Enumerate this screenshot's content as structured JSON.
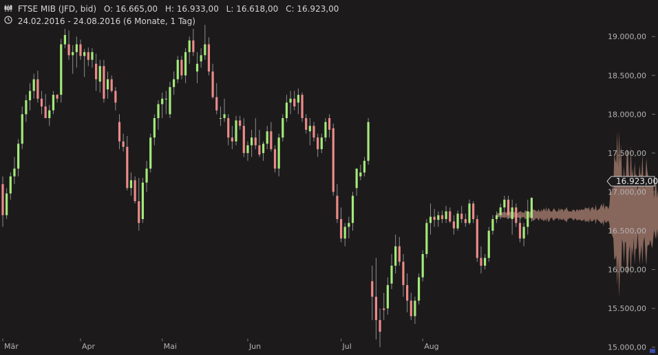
{
  "header": {
    "instrument": "FTSE MIB (JFD, bid)",
    "open": "O: 16.665,00",
    "high": "H: 16.933,00",
    "low": "L: 16.618,00",
    "close": "C: 16.923,00",
    "range": "24.02.2016 - 24.08.2016 (6 Monate, 1 Tag)",
    "chart_icon": "candlestick-icon",
    "clock_icon": "clock-icon"
  },
  "last_price_label": "16.923,00",
  "colors": {
    "background": "#1c1a1a",
    "up": "#a3ea7a",
    "down": "#ec8a8a",
    "wick": "#8e8e8e",
    "overlay": "#9a7468",
    "axis_text": "#b4b4b4"
  },
  "chart_data": {
    "type": "candlestick",
    "title": "FTSE MIB (JFD, bid)",
    "xlabel": "",
    "ylabel": "",
    "x_tick_labels": [
      "Mär",
      "Apr",
      "Mai",
      "Jun",
      "Jul",
      "Aug"
    ],
    "y_ticks": [
      15000,
      15500,
      16000,
      16500,
      17000,
      17500,
      18000,
      18500,
      19000
    ],
    "y_tick_labels": [
      "15.000,00",
      "15.500,00",
      "16.000,00",
      "16.500,00",
      "17.000,00",
      "17.500,00",
      "18.000,00",
      "18.500,00",
      "19.000,00"
    ],
    "ylim": [
      14900,
      19400
    ],
    "last_price": 16923,
    "grid": false,
    "series": [
      {
        "candles": [
          [
            17100,
            17200,
            16550,
            16700
          ],
          [
            16700,
            17050,
            16650,
            16980
          ],
          [
            16980,
            17250,
            16900,
            17200
          ],
          [
            17200,
            17450,
            17100,
            17300
          ],
          [
            17300,
            17680,
            17200,
            17620
          ],
          [
            17620,
            18100,
            17550,
            18000
          ],
          [
            18000,
            18250,
            17900,
            18180
          ],
          [
            18180,
            18400,
            18050,
            18300
          ],
          [
            18300,
            18520,
            18200,
            18450
          ],
          [
            18450,
            18560,
            18150,
            18200
          ],
          [
            18200,
            18300,
            18000,
            18100
          ],
          [
            18100,
            18260,
            17950,
            17950
          ],
          [
            17950,
            18120,
            17850,
            18050
          ],
          [
            18050,
            18300,
            18000,
            18250
          ],
          [
            18250,
            18260,
            18150,
            18200
          ],
          [
            18250,
            18970,
            18150,
            18900
          ],
          [
            18900,
            19100,
            18850,
            19020
          ],
          [
            18900,
            19080,
            18700,
            18760
          ],
          [
            18760,
            18890,
            18520,
            18800
          ],
          [
            18800,
            19000,
            18600,
            18900
          ],
          [
            18900,
            18960,
            18700,
            18750
          ],
          [
            18750,
            18840,
            18480,
            18800
          ],
          [
            18800,
            18860,
            18620,
            18700
          ],
          [
            18700,
            18850,
            18600,
            18800
          ],
          [
            18650,
            18780,
            18300,
            18450
          ],
          [
            18420,
            18700,
            18280,
            18620
          ],
          [
            18620,
            18700,
            18150,
            18200
          ],
          [
            18320,
            18550,
            18200,
            18450
          ],
          [
            18450,
            18500,
            18280,
            18300
          ],
          [
            18300,
            18350,
            18050,
            18150
          ],
          [
            17900,
            18000,
            17550,
            17650
          ],
          [
            17650,
            17750,
            17520,
            17580
          ],
          [
            17580,
            17720,
            17020,
            17050
          ],
          [
            17050,
            17250,
            16950,
            17150
          ],
          [
            17150,
            17200,
            16850,
            16880
          ],
          [
            16880,
            17180,
            16500,
            16600
          ],
          [
            16650,
            17180,
            16600,
            17120
          ],
          [
            17120,
            17400,
            17000,
            17300
          ],
          [
            17300,
            17750,
            17250,
            17700
          ],
          [
            17700,
            18000,
            17600,
            17950
          ],
          [
            17950,
            18180,
            17800,
            18130
          ],
          [
            18130,
            18280,
            17950,
            18200
          ],
          [
            18200,
            18300,
            18000,
            18200
          ],
          [
            18000,
            18420,
            17950,
            18350
          ],
          [
            18350,
            18550,
            18250,
            18450
          ],
          [
            18450,
            18750,
            18400,
            18700
          ],
          [
            18700,
            18750,
            18450,
            18500
          ],
          [
            18500,
            18850,
            18400,
            18800
          ],
          [
            18800,
            19000,
            18650,
            18950
          ],
          [
            18950,
            19100,
            18750,
            18800
          ],
          [
            18550,
            18800,
            18400,
            18650
          ],
          [
            18680,
            18850,
            18600,
            18760
          ],
          [
            18760,
            19150,
            18700,
            18900
          ],
          [
            18900,
            18990,
            18500,
            18550
          ],
          [
            18550,
            18650,
            18200,
            18220
          ],
          [
            18220,
            18400,
            18000,
            18050
          ],
          [
            17950,
            18100,
            17850,
            17950
          ],
          [
            17950,
            18200,
            17900,
            18000
          ],
          [
            17950,
            18000,
            17600,
            17700
          ],
          [
            17700,
            17850,
            17550,
            17650
          ],
          [
            17650,
            17980,
            17600,
            17920
          ],
          [
            17920,
            17980,
            17800,
            17850
          ],
          [
            17850,
            17950,
            17450,
            17500
          ],
          [
            17500,
            17650,
            17400,
            17600
          ],
          [
            17600,
            17800,
            17450,
            17700
          ],
          [
            17700,
            17950,
            17550,
            17600
          ],
          [
            17600,
            17800,
            17450,
            17480
          ],
          [
            17500,
            17650,
            17400,
            17620
          ],
          [
            17620,
            17850,
            17550,
            17780
          ],
          [
            17780,
            17900,
            17520,
            17550
          ],
          [
            17550,
            17600,
            17250,
            17300
          ],
          [
            17300,
            17750,
            17200,
            17700
          ],
          [
            17700,
            18000,
            17650,
            17950
          ],
          [
            17950,
            18250,
            17900,
            18150
          ],
          [
            18150,
            18300,
            18000,
            18200
          ],
          [
            18200,
            18300,
            18050,
            18100
          ],
          [
            18150,
            18330,
            18000,
            18250
          ],
          [
            18250,
            18280,
            17900,
            17950
          ],
          [
            17950,
            18000,
            17750,
            17800
          ],
          [
            17780,
            17950,
            17600,
            17850
          ],
          [
            17850,
            17900,
            17650,
            17700
          ],
          [
            17700,
            17750,
            17450,
            17550
          ],
          [
            17550,
            17750,
            17500,
            17700
          ],
          [
            17700,
            17950,
            17650,
            17900
          ],
          [
            17950,
            18000,
            17700,
            17800
          ],
          [
            17820,
            17880,
            16950,
            17000
          ],
          [
            16950,
            17100,
            16600,
            16650
          ],
          [
            16650,
            16800,
            16350,
            16400
          ],
          [
            16400,
            16600,
            16300,
            16550
          ],
          [
            16550,
            16680,
            16400,
            16600
          ],
          [
            16600,
            17000,
            16500,
            16950
          ],
          [
            17050,
            17300,
            16950,
            17300
          ],
          [
            17200,
            17350,
            17150,
            17250
          ],
          [
            17250,
            17450,
            17200,
            17400
          ],
          [
            17400,
            17950,
            17350,
            17900
          ],
          [
            15850,
            16050,
            15350,
            15650
          ],
          [
            15650,
            16150,
            15100,
            15350
          ],
          [
            15350,
            15500,
            15000,
            15200
          ],
          [
            15500,
            15700,
            15350,
            15480
          ],
          [
            15500,
            15900,
            15420,
            15800
          ],
          [
            15820,
            16200,
            15750,
            16050
          ],
          [
            16050,
            16450,
            15950,
            16300
          ],
          [
            16300,
            16420,
            16050,
            16100
          ],
          [
            16100,
            16200,
            15650,
            15800
          ],
          [
            15800,
            15950,
            15450,
            15600
          ],
          [
            15600,
            15700,
            15350,
            15400
          ],
          [
            15400,
            15650,
            15300,
            15600
          ],
          [
            15600,
            15950,
            15550,
            15900
          ],
          [
            15900,
            16250,
            15850,
            16200
          ],
          [
            16200,
            16650,
            16150,
            16600
          ],
          [
            16600,
            16850,
            16450,
            16680
          ],
          [
            16680,
            16780,
            16550,
            16640
          ],
          [
            16640,
            16750,
            16550,
            16700
          ],
          [
            16700,
            16760,
            16600,
            16650
          ],
          [
            16650,
            16820,
            16600,
            16750
          ],
          [
            16750,
            16800,
            16600,
            16620
          ],
          [
            16620,
            16700,
            16450,
            16530
          ],
          [
            16530,
            16760,
            16500,
            16720
          ],
          [
            16720,
            16820,
            16600,
            16650
          ],
          [
            16650,
            16720,
            16550,
            16600
          ],
          [
            16600,
            16900,
            16580,
            16850
          ],
          [
            16850,
            16880,
            16600,
            16650
          ],
          [
            16650,
            16700,
            16100,
            16150
          ],
          [
            16150,
            16300,
            15950,
            16050
          ],
          [
            16050,
            16200,
            16000,
            16150
          ],
          [
            16150,
            16550,
            16100,
            16500
          ],
          [
            16500,
            16700,
            16450,
            16650
          ],
          [
            16650,
            16750,
            16600,
            16700
          ],
          [
            16700,
            16850,
            16650,
            16800
          ],
          [
            16800,
            16950,
            16700,
            16900
          ],
          [
            16900,
            16950,
            16650,
            16700
          ],
          [
            16650,
            16900,
            16450,
            16800
          ],
          [
            16800,
            16850,
            16550,
            16600
          ],
          [
            16600,
            16700,
            16350,
            16400
          ],
          [
            16400,
            16600,
            16300,
            16550
          ],
          [
            16550,
            16900,
            16450,
            16750
          ],
          [
            16665,
            16933,
            16618,
            16923
          ]
        ]
      },
      {
        "name": "",
        "type": "area",
        "x_range_candle_index": [
          127,
          172
        ],
        "center": 16700,
        "envelope": [
          [
            127,
            50
          ],
          [
            131,
            60
          ],
          [
            136,
            70
          ],
          [
            139,
            120
          ],
          [
            142,
            100
          ],
          [
            145,
            130
          ],
          [
            148,
            80
          ],
          [
            150,
            110
          ],
          [
            153,
            150
          ],
          [
            156,
            200
          ],
          [
            158,
            1300
          ],
          [
            160,
            800
          ],
          [
            161,
            1000
          ],
          [
            163,
            700
          ],
          [
            165,
            900
          ],
          [
            167,
            650
          ],
          [
            170,
            400
          ],
          [
            172,
            350
          ],
          [
            174,
            250
          ],
          [
            176,
            200
          ],
          [
            178,
            150
          ],
          [
            181,
            120
          ],
          [
            186,
            120
          ],
          [
            190,
            100
          ]
        ]
      }
    ]
  }
}
